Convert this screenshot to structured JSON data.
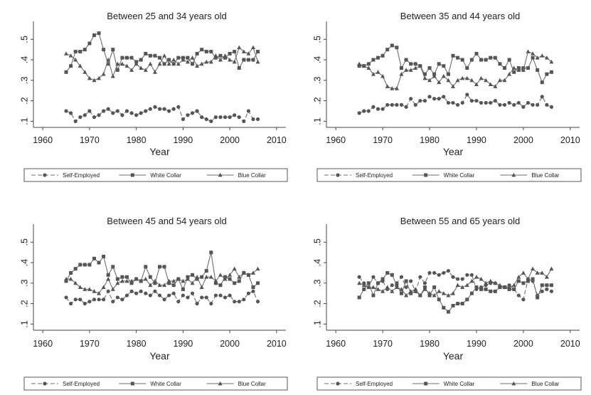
{
  "chart_data": [
    {
      "type": "line",
      "title": "Between 25 and 34 years old",
      "xlabel": "Year",
      "ylabel": "",
      "xlim": [
        1958,
        2012
      ],
      "ylim": [
        0.07,
        0.56
      ],
      "xticks": [
        1960,
        1970,
        1980,
        1990,
        2000,
        2010
      ],
      "yticks": [
        0.1,
        0.2,
        0.3,
        0.4,
        0.5
      ],
      "ytick_labels": [
        ".1",
        ".2",
        ".3",
        ".4",
        ".5"
      ],
      "legend_position": "bottom",
      "x": [
        1965,
        1966,
        1967,
        1968,
        1969,
        1970,
        1971,
        1972,
        1973,
        1974,
        1975,
        1976,
        1977,
        1978,
        1979,
        1980,
        1981,
        1982,
        1983,
        1984,
        1985,
        1986,
        1987,
        1988,
        1989,
        1990,
        1991,
        1992,
        1993,
        1994,
        1995,
        1996,
        1997,
        1998,
        1999,
        2000,
        2001,
        2002,
        2003,
        2004,
        2005,
        2006
      ],
      "series": [
        {
          "name": "Self-Employed",
          "marker": "circle",
          "values": [
            0.15,
            0.14,
            0.1,
            0.12,
            0.13,
            0.15,
            0.12,
            0.13,
            0.15,
            0.16,
            0.14,
            0.15,
            0.13,
            0.15,
            0.14,
            0.13,
            0.14,
            0.15,
            0.16,
            0.17,
            0.16,
            0.16,
            0.15,
            0.16,
            0.17,
            0.11,
            0.13,
            0.14,
            0.15,
            0.12,
            0.11,
            0.1,
            0.12,
            0.12,
            0.12,
            0.12,
            0.13,
            0.12,
            0.1,
            0.15,
            0.11,
            0.11
          ]
        },
        {
          "name": "White Collar",
          "marker": "square",
          "values": [
            0.34,
            0.37,
            0.44,
            0.44,
            0.45,
            0.48,
            0.52,
            0.53,
            0.45,
            0.38,
            0.45,
            0.35,
            0.41,
            0.41,
            0.41,
            0.39,
            0.4,
            0.43,
            0.42,
            0.42,
            0.41,
            0.38,
            0.4,
            0.38,
            0.41,
            0.41,
            0.41,
            0.38,
            0.43,
            0.45,
            0.44,
            0.44,
            0.41,
            0.42,
            0.41,
            0.43,
            0.44,
            0.36,
            0.4,
            0.4,
            0.4,
            0.44
          ]
        },
        {
          "name": "Blue Collar",
          "marker": "triangle",
          "values": [
            0.43,
            0.42,
            0.4,
            0.37,
            0.34,
            0.31,
            0.3,
            0.31,
            0.33,
            0.4,
            0.32,
            0.38,
            0.38,
            0.37,
            0.35,
            0.38,
            0.36,
            0.35,
            0.38,
            0.34,
            0.38,
            0.42,
            0.38,
            0.4,
            0.38,
            0.4,
            0.39,
            0.41,
            0.37,
            0.38,
            0.39,
            0.39,
            0.42,
            0.4,
            0.42,
            0.4,
            0.39,
            0.46,
            0.44,
            0.43,
            0.46,
            0.39
          ]
        }
      ]
    },
    {
      "type": "line",
      "title": "Between 35 and 44 years old",
      "xlabel": "Year",
      "ylabel": "",
      "xlim": [
        1958,
        2012
      ],
      "ylim": [
        0.07,
        0.56
      ],
      "xticks": [
        1960,
        1970,
        1980,
        1990,
        2000,
        2010
      ],
      "yticks": [
        0.1,
        0.2,
        0.3,
        0.4,
        0.5
      ],
      "ytick_labels": [
        ".1",
        ".2",
        ".3",
        ".4",
        ".5"
      ],
      "legend_position": "bottom",
      "x": [
        1965,
        1966,
        1967,
        1968,
        1969,
        1970,
        1971,
        1972,
        1973,
        1974,
        1975,
        1976,
        1977,
        1978,
        1979,
        1980,
        1981,
        1982,
        1983,
        1984,
        1985,
        1986,
        1987,
        1988,
        1989,
        1990,
        1991,
        1992,
        1993,
        1994,
        1995,
        1996,
        1997,
        1998,
        1999,
        2000,
        2001,
        2002,
        2003,
        2004,
        2005,
        2006
      ],
      "series": [
        {
          "name": "Self-Employed",
          "marker": "circle",
          "values": [
            0.14,
            0.15,
            0.15,
            0.17,
            0.16,
            0.16,
            0.18,
            0.18,
            0.18,
            0.18,
            0.17,
            0.21,
            0.18,
            0.2,
            0.2,
            0.22,
            0.21,
            0.21,
            0.22,
            0.19,
            0.19,
            0.18,
            0.19,
            0.23,
            0.2,
            0.2,
            0.19,
            0.19,
            0.19,
            0.2,
            0.18,
            0.18,
            0.19,
            0.18,
            0.19,
            0.17,
            0.19,
            0.18,
            0.18,
            0.22,
            0.18,
            0.17
          ]
        },
        {
          "name": "White Collar",
          "marker": "square",
          "values": [
            0.37,
            0.37,
            0.38,
            0.4,
            0.41,
            0.42,
            0.45,
            0.47,
            0.46,
            0.36,
            0.4,
            0.38,
            0.38,
            0.37,
            0.33,
            0.36,
            0.33,
            0.38,
            0.37,
            0.33,
            0.42,
            0.41,
            0.4,
            0.36,
            0.4,
            0.43,
            0.4,
            0.4,
            0.41,
            0.41,
            0.38,
            0.36,
            0.4,
            0.34,
            0.36,
            0.36,
            0.36,
            0.41,
            0.35,
            0.29,
            0.33,
            0.34
          ]
        },
        {
          "name": "Blue Collar",
          "marker": "triangle",
          "values": [
            0.38,
            0.37,
            0.36,
            0.33,
            0.34,
            0.32,
            0.27,
            0.26,
            0.26,
            0.33,
            0.35,
            0.35,
            0.36,
            0.37,
            0.31,
            0.3,
            0.32,
            0.29,
            0.32,
            0.3,
            0.27,
            0.3,
            0.31,
            0.31,
            0.3,
            0.28,
            0.31,
            0.3,
            0.28,
            0.27,
            0.3,
            0.3,
            0.33,
            0.36,
            0.35,
            0.35,
            0.44,
            0.43,
            0.41,
            0.42,
            0.41,
            0.39
          ]
        }
      ]
    },
    {
      "type": "line",
      "title": "Between 45 and 54 years old",
      "xlabel": "Year",
      "ylabel": "",
      "xlim": [
        1958,
        2012
      ],
      "ylim": [
        0.07,
        0.56
      ],
      "xticks": [
        1960,
        1970,
        1980,
        1990,
        2000,
        2010
      ],
      "yticks": [
        0.1,
        0.2,
        0.3,
        0.4,
        0.5
      ],
      "ytick_labels": [
        ".1",
        ".2",
        ".3",
        ".4",
        ".5"
      ],
      "legend_position": "bottom",
      "x": [
        1965,
        1966,
        1967,
        1968,
        1969,
        1970,
        1971,
        1972,
        1973,
        1974,
        1975,
        1976,
        1977,
        1978,
        1979,
        1980,
        1981,
        1982,
        1983,
        1984,
        1985,
        1986,
        1987,
        1988,
        1989,
        1990,
        1991,
        1992,
        1993,
        1994,
        1995,
        1996,
        1997,
        1998,
        1999,
        2000,
        2001,
        2002,
        2003,
        2004,
        2005,
        2006
      ],
      "series": [
        {
          "name": "Self-Employed",
          "marker": "circle",
          "values": [
            0.23,
            0.2,
            0.22,
            0.22,
            0.2,
            0.21,
            0.22,
            0.22,
            0.22,
            0.26,
            0.21,
            0.23,
            0.22,
            0.24,
            0.26,
            0.25,
            0.26,
            0.25,
            0.24,
            0.26,
            0.24,
            0.22,
            0.24,
            0.25,
            0.21,
            0.24,
            0.23,
            0.25,
            0.2,
            0.23,
            0.23,
            0.2,
            0.24,
            0.24,
            0.23,
            0.24,
            0.21,
            0.21,
            0.22,
            0.25,
            0.26,
            0.21
          ]
        },
        {
          "name": "White Collar",
          "marker": "square",
          "values": [
            0.31,
            0.35,
            0.37,
            0.39,
            0.39,
            0.39,
            0.42,
            0.4,
            0.43,
            0.34,
            0.38,
            0.32,
            0.33,
            0.33,
            0.3,
            0.32,
            0.31,
            0.38,
            0.33,
            0.3,
            0.38,
            0.38,
            0.3,
            0.29,
            0.32,
            0.27,
            0.33,
            0.34,
            0.32,
            0.33,
            0.36,
            0.45,
            0.3,
            0.29,
            0.33,
            0.32,
            0.3,
            0.31,
            0.35,
            0.34,
            0.28,
            0.3
          ]
        },
        {
          "name": "Blue Collar",
          "marker": "triangle",
          "values": [
            0.32,
            0.32,
            0.3,
            0.28,
            0.27,
            0.27,
            0.26,
            0.25,
            0.28,
            0.32,
            0.27,
            0.3,
            0.31,
            0.31,
            0.31,
            0.32,
            0.31,
            0.32,
            0.29,
            0.31,
            0.29,
            0.29,
            0.31,
            0.31,
            0.32,
            0.31,
            0.32,
            0.3,
            0.33,
            0.28,
            0.33,
            0.33,
            0.31,
            0.34,
            0.32,
            0.34,
            0.37,
            0.33,
            0.35,
            0.34,
            0.35,
            0.37
          ]
        }
      ]
    },
    {
      "type": "line",
      "title": "Between 55 and 65 years old",
      "xlabel": "Year",
      "ylabel": "",
      "xlim": [
        1958,
        2012
      ],
      "ylim": [
        0.07,
        0.56
      ],
      "xticks": [
        1960,
        1970,
        1980,
        1990,
        2000,
        2010
      ],
      "yticks": [
        0.1,
        0.2,
        0.3,
        0.4,
        0.5
      ],
      "ytick_labels": [
        ".1",
        ".2",
        ".3",
        ".4",
        ".5"
      ],
      "legend_position": "bottom",
      "x": [
        1965,
        1966,
        1967,
        1968,
        1969,
        1970,
        1971,
        1972,
        1973,
        1974,
        1975,
        1976,
        1977,
        1978,
        1979,
        1980,
        1981,
        1982,
        1983,
        1984,
        1985,
        1986,
        1987,
        1988,
        1989,
        1990,
        1991,
        1992,
        1993,
        1994,
        1995,
        1996,
        1997,
        1998,
        1999,
        2000,
        2001,
        2002,
        2003,
        2004,
        2005,
        2006
      ],
      "series": [
        {
          "name": "Self-Employed",
          "marker": "circle",
          "values": [
            0.33,
            0.3,
            0.28,
            0.33,
            0.3,
            0.31,
            0.27,
            0.29,
            0.3,
            0.33,
            0.28,
            0.31,
            0.26,
            0.33,
            0.3,
            0.35,
            0.35,
            0.34,
            0.35,
            0.36,
            0.33,
            0.32,
            0.32,
            0.34,
            0.34,
            0.27,
            0.28,
            0.29,
            0.3,
            0.3,
            0.28,
            0.28,
            0.29,
            0.27,
            0.24,
            0.22,
            0.32,
            0.31,
            0.24,
            0.26,
            0.27,
            0.26
          ]
        },
        {
          "name": "White Collar",
          "marker": "square",
          "values": [
            0.23,
            0.27,
            0.3,
            0.24,
            0.3,
            0.32,
            0.35,
            0.34,
            0.29,
            0.25,
            0.31,
            0.25,
            0.26,
            0.24,
            0.28,
            0.24,
            0.28,
            0.22,
            0.18,
            0.16,
            0.19,
            0.2,
            0.2,
            0.22,
            0.25,
            0.28,
            0.27,
            0.27,
            0.26,
            0.26,
            0.28,
            0.28,
            0.27,
            0.27,
            0.31,
            0.3,
            0.31,
            0.32,
            0.23,
            0.29,
            0.29,
            0.29
          ]
        },
        {
          "name": "Blue Collar",
          "marker": "triangle",
          "values": [
            0.3,
            0.29,
            0.28,
            0.28,
            0.27,
            0.26,
            0.28,
            0.26,
            0.28,
            0.27,
            0.24,
            0.26,
            0.27,
            0.24,
            0.27,
            0.25,
            0.24,
            0.26,
            0.25,
            0.24,
            0.25,
            0.29,
            0.28,
            0.29,
            0.31,
            0.33,
            0.32,
            0.3,
            0.31,
            0.3,
            0.29,
            0.28,
            0.28,
            0.29,
            0.33,
            0.35,
            0.32,
            0.37,
            0.35,
            0.35,
            0.33,
            0.37
          ]
        }
      ]
    }
  ]
}
